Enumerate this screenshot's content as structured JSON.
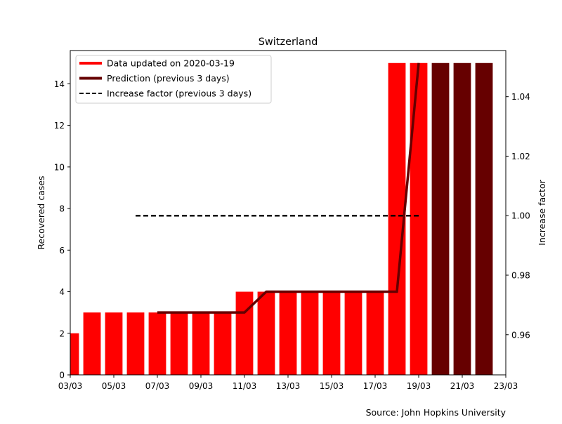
{
  "chart_data": {
    "type": "bar",
    "title": "Switzerland",
    "ylabel": "Recovered cases",
    "y2label": "Increase factor",
    "source": "Source: John Hopkins University",
    "x_ticks": [
      "03/03",
      "05/03",
      "07/03",
      "09/03",
      "11/03",
      "13/03",
      "15/03",
      "17/03",
      "19/03",
      "21/03",
      "23/03"
    ],
    "x_start_date": "03/03",
    "ylim": [
      0,
      15.6
    ],
    "y_ticks": [
      0,
      2,
      4,
      6,
      8,
      10,
      12,
      14
    ],
    "y2lim": [
      0.9465,
      1.0555
    ],
    "y2_ticks": [
      0.96,
      0.98,
      1.0,
      1.02,
      1.04
    ],
    "y2_tick_labels": [
      "0.96",
      "0.98",
      "1.00",
      "1.02",
      "1.04"
    ],
    "legend": [
      {
        "label": "Data updated on 2020-03-19",
        "style": "thick-red"
      },
      {
        "label": "Prediction (previous 3 days)",
        "style": "thick-darkred"
      },
      {
        "label": "Increase factor (previous 3 days)",
        "style": "dashed-black"
      }
    ],
    "legend_position": "top-left",
    "series": [
      {
        "name": "Data updated on 2020-03-19",
        "color": "#ff0000",
        "dates": [
          "03/03",
          "04/03",
          "05/03",
          "06/03",
          "07/03",
          "08/03",
          "09/03",
          "10/03",
          "11/03",
          "12/03",
          "13/03",
          "14/03",
          "15/03",
          "16/03",
          "17/03",
          "18/03",
          "19/03"
        ],
        "values": [
          2,
          3,
          3,
          3,
          3,
          3,
          3,
          3,
          4,
          4,
          4,
          4,
          4,
          4,
          4,
          15,
          15
        ]
      },
      {
        "name": "Prediction (previous 3 days)",
        "color": "#660000",
        "dates": [
          "20/03",
          "21/03",
          "22/03"
        ],
        "values": [
          15,
          15,
          15
        ]
      }
    ],
    "prediction_line": {
      "color": "#660000",
      "dates": [
        "07/03",
        "08/03",
        "09/03",
        "10/03",
        "11/03",
        "12/03",
        "13/03",
        "14/03",
        "15/03",
        "16/03",
        "17/03",
        "18/03",
        "19/03"
      ],
      "values": [
        3,
        3,
        3,
        3,
        3,
        4,
        4,
        4,
        4,
        4,
        4,
        4,
        15
      ]
    },
    "increase_factor": {
      "color": "#000000",
      "dates": [
        "06/03",
        "19/03"
      ],
      "values": [
        1.0,
        1.0
      ]
    }
  }
}
